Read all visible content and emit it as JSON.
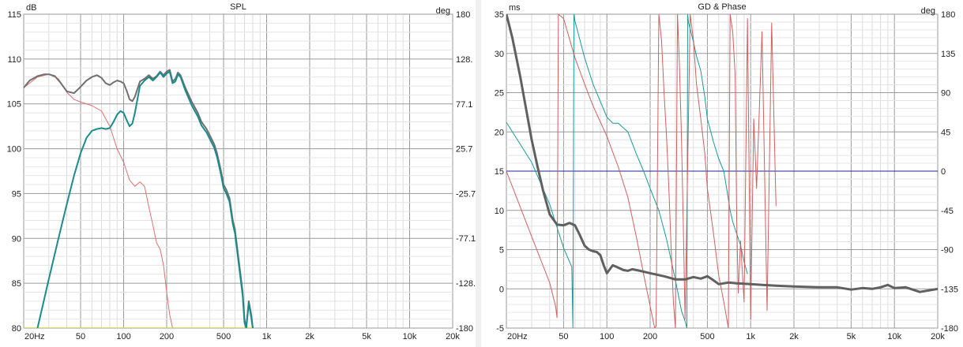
{
  "chart_data": [
    {
      "type": "line",
      "title": "SPL",
      "xlabel": "",
      "ylabel": "dB",
      "y2label": "deg",
      "xscale": "log",
      "xlim": [
        20,
        20000
      ],
      "ylim": [
        80,
        115
      ],
      "y2lim": [
        -180,
        180
      ],
      "x_ticks": [
        {
          "value": 20,
          "label": "20Hz"
        },
        {
          "value": 50,
          "label": "50"
        },
        {
          "value": 100,
          "label": "100"
        },
        {
          "value": 200,
          "label": "200"
        },
        {
          "value": 500,
          "label": "500"
        },
        {
          "value": 1000,
          "label": "1k"
        },
        {
          "value": 2000,
          "label": "2k"
        },
        {
          "value": 5000,
          "label": "5k"
        },
        {
          "value": 10000,
          "label": "10k"
        },
        {
          "value": 20000,
          "label": "20k"
        }
      ],
      "y_ticks": [
        {
          "value": 115,
          "label": "115"
        },
        {
          "value": 110,
          "label": "110"
        },
        {
          "value": 105,
          "label": "105"
        },
        {
          "value": 100,
          "label": "100"
        },
        {
          "value": 95,
          "label": "95"
        },
        {
          "value": 90,
          "label": "90"
        },
        {
          "value": 85,
          "label": "85"
        },
        {
          "value": 80,
          "label": "80"
        }
      ],
      "y2_ticks": [
        {
          "value": 180,
          "label": "180"
        },
        {
          "value": 128.6,
          "label": "128."
        },
        {
          "value": 77.1,
          "label": "77.1"
        },
        {
          "value": 25.7,
          "label": "25.7"
        },
        {
          "value": -25.7,
          "label": "-25.7"
        },
        {
          "value": -77.1,
          "label": "-77.1"
        },
        {
          "value": -128.6,
          "label": "-128."
        },
        {
          "value": -180,
          "label": "-180"
        }
      ],
      "grid": true,
      "series": [
        {
          "color": "#e07070",
          "width": 1,
          "axis": "y",
          "x": [
            20,
            25,
            30,
            35,
            40,
            45,
            50,
            60,
            70,
            80,
            90,
            100,
            110,
            120,
            130,
            140,
            150,
            160,
            170,
            180,
            190,
            200,
            210,
            220,
            230
          ],
          "y": [
            106.8,
            108.0,
            108.3,
            107.8,
            106.3,
            105.5,
            105.2,
            104.8,
            104.2,
            102.5,
            100.0,
            98.5,
            96.5,
            95.8,
            96.3,
            95.8,
            93.5,
            91.5,
            89.5,
            88.8,
            87.0,
            84.0,
            81.5,
            80.0,
            80.0
          ]
        },
        {
          "color": "#c8dc28",
          "width": 1.5,
          "axis": "y",
          "x": [
            20,
            25,
            30,
            35,
            40,
            45,
            50,
            60,
            70,
            80,
            90,
            100,
            110,
            120,
            130,
            140,
            150,
            160,
            170,
            180,
            190,
            200,
            210,
            220,
            230,
            240,
            250,
            270,
            300,
            330,
            350,
            380,
            400,
            430,
            450,
            480,
            500,
            520,
            550,
            580,
            600,
            650,
            680,
            700,
            720,
            750,
            780,
            800
          ],
          "y": [
            80.0,
            80.0,
            80.0,
            80.0,
            80.0,
            80.0,
            80.0,
            80.0,
            80.0,
            80.0,
            80.0,
            80.0,
            80.0,
            80.0,
            80.0,
            80.0,
            80.0,
            80.0,
            80.0,
            80.0,
            80.0,
            80.0,
            80.0,
            80.0,
            80.0,
            80.0,
            80.0,
            80.0,
            80.0,
            80.0,
            80.0,
            80.0,
            80.0,
            80.0,
            80.0,
            80.0,
            80.0,
            80.0,
            80.0,
            80.0,
            80.0,
            80.0,
            80.0,
            80.0,
            80.0,
            80.0,
            80.0,
            80.0
          ]
        },
        {
          "color": "#707070",
          "width": 2,
          "axis": "y",
          "x": [
            20,
            22,
            25,
            28,
            30,
            33,
            36,
            40,
            45,
            50,
            55,
            60,
            65,
            70,
            75,
            80,
            85,
            90,
            95,
            100,
            105,
            110,
            115,
            120,
            130,
            140,
            150,
            160,
            170,
            180,
            190,
            200,
            210,
            220,
            230,
            240,
            250,
            270,
            300,
            330,
            350,
            380,
            400,
            430,
            450,
            480,
            500,
            520,
            550,
            580,
            600,
            650,
            680,
            700,
            720,
            750,
            780,
            800
          ],
          "y": [
            106.8,
            107.6,
            108.1,
            108.3,
            108.3,
            108.1,
            107.4,
            106.4,
            106.2,
            106.9,
            107.6,
            108.0,
            108.2,
            107.9,
            107.3,
            107.1,
            107.4,
            107.6,
            107.5,
            107.3,
            106.5,
            105.5,
            105.3,
            105.8,
            107.5,
            107.8,
            108.2,
            107.8,
            108.1,
            108.6,
            108.2,
            108.6,
            108.8,
            107.5,
            107.8,
            108.5,
            108.2,
            106.8,
            105.2,
            104.0,
            103.0,
            102.2,
            101.5,
            100.5,
            99.5,
            97.5,
            96.0,
            95.5,
            94.5,
            92.0,
            91.0,
            86.5,
            84.0,
            81.0,
            80.0,
            83.0,
            81.5,
            80.0
          ]
        },
        {
          "color": "#1a8c8c",
          "width": 2,
          "axis": "y",
          "x": [
            25,
            30,
            35,
            40,
            45,
            50,
            55,
            60,
            65,
            70,
            75,
            80,
            85,
            90,
            95,
            100,
            105,
            110,
            115,
            120,
            130,
            140,
            150,
            160,
            170,
            180,
            190,
            200,
            210,
            220,
            230,
            240,
            250,
            270,
            300,
            330,
            350,
            380,
            400,
            430,
            450,
            480,
            500,
            520,
            550,
            580,
            600,
            650,
            680,
            700,
            720,
            750,
            780,
            800
          ],
          "y": [
            80.0,
            85.5,
            90.0,
            93.8,
            97.0,
            99.5,
            101.2,
            102.0,
            102.2,
            102.3,
            102.2,
            102.3,
            103.0,
            103.8,
            104.2,
            104.0,
            103.2,
            102.5,
            102.8,
            104.0,
            107.0,
            107.6,
            108.0,
            107.6,
            108.0,
            108.5,
            108.0,
            108.4,
            108.6,
            107.3,
            107.5,
            108.3,
            108.0,
            106.5,
            104.8,
            103.6,
            102.6,
            101.8,
            101.1,
            100.1,
            99.1,
            97.1,
            95.6,
            95.1,
            94.1,
            91.6,
            90.6,
            86.1,
            83.6,
            80.6,
            80.0,
            82.8,
            81.2,
            80.0
          ]
        }
      ]
    },
    {
      "type": "line",
      "title": "GD & Phase",
      "xlabel": "",
      "ylabel": "ms",
      "y2label": "deg",
      "xscale": "log",
      "xlim": [
        20,
        20000
      ],
      "ylim": [
        -5,
        35
      ],
      "y2lim": [
        -180,
        180
      ],
      "x_ticks": [
        {
          "value": 20,
          "label": "20Hz"
        },
        {
          "value": 50,
          "label": "50"
        },
        {
          "value": 100,
          "label": "100"
        },
        {
          "value": 200,
          "label": "200"
        },
        {
          "value": 500,
          "label": "500"
        },
        {
          "value": 1000,
          "label": "1k"
        },
        {
          "value": 2000,
          "label": "2k"
        },
        {
          "value": 5000,
          "label": "5k"
        },
        {
          "value": 10000,
          "label": "10k"
        },
        {
          "value": 20000,
          "label": "20k"
        }
      ],
      "y_ticks": [
        {
          "value": 35,
          "label": "35"
        },
        {
          "value": 30,
          "label": "30"
        },
        {
          "value": 25,
          "label": "25"
        },
        {
          "value": 20,
          "label": "20"
        },
        {
          "value": 15,
          "label": "15"
        },
        {
          "value": 10,
          "label": "10"
        },
        {
          "value": 5,
          "label": "5"
        },
        {
          "value": 0,
          "label": "0"
        },
        {
          "value": -5,
          "label": "-5"
        }
      ],
      "y2_ticks": [
        {
          "value": 180,
          "label": "180"
        },
        {
          "value": 135,
          "label": "135"
        },
        {
          "value": 90,
          "label": "90"
        },
        {
          "value": 45,
          "label": "45"
        },
        {
          "value": 0,
          "label": "0"
        },
        {
          "value": -45,
          "label": "-45"
        },
        {
          "value": -90,
          "label": "-90"
        },
        {
          "value": -135,
          "label": "-135"
        },
        {
          "value": -180,
          "label": "-180"
        }
      ],
      "grid": true,
      "series": [
        {
          "color": "#2020a0",
          "width": 1,
          "axis": "y2",
          "x": [
            20,
            20000
          ],
          "y": [
            0,
            0
          ]
        },
        {
          "color": "#1a9a9a",
          "width": 1,
          "axis": "y2",
          "x": [
            20,
            30,
            40,
            50,
            57,
            58,
            59,
            60,
            70,
            80,
            100,
            110,
            120,
            140,
            160,
            180,
            200,
            230,
            260,
            300,
            330,
            350,
            360,
            365,
            370,
            380,
            400,
            420,
            450,
            480,
            500,
            550,
            600,
            650,
            700,
            720,
            750,
            800,
            850,
            900,
            950
          ],
          "y": [
            56,
            10,
            -38,
            -88,
            -110,
            -180,
            180,
            172,
            130,
            100,
            62,
            55,
            55,
            45,
            20,
            0,
            -20,
            -45,
            -78,
            -125,
            -160,
            -172,
            -180,
            180,
            170,
            163,
            148,
            132,
            115,
            85,
            60,
            34,
            14,
            0,
            -32,
            -45,
            -58,
            -72,
            -85,
            -104,
            -118
          ]
        },
        {
          "color": "#d06060",
          "width": 1,
          "axis": "y2",
          "x": [
            20,
            30,
            40,
            44,
            45,
            46,
            50,
            60,
            70,
            80,
            100,
            120,
            140,
            160,
            180,
            200,
            215,
            220,
            230,
            240,
            250,
            260,
            270,
            280,
            290,
            300,
            310,
            320,
            330,
            340,
            350,
            380,
            400,
            420,
            450,
            480,
            500,
            550,
            600,
            650,
            700,
            720,
            750,
            780,
            800,
            820,
            850,
            900,
            950,
            1000,
            1050,
            1100,
            1200,
            1300,
            1400,
            1500
          ],
          "y": [
            0,
            -75,
            -128,
            -155,
            -168,
            180,
            175,
            130,
            100,
            75,
            40,
            5,
            -30,
            -75,
            -118,
            -155,
            -180,
            -178,
            180,
            150,
            90,
            40,
            -20,
            -90,
            -150,
            -180,
            180,
            120,
            40,
            -60,
            -170,
            180,
            150,
            100,
            60,
            20,
            -20,
            -70,
            -120,
            -150,
            -180,
            180,
            160,
            110,
            -60,
            -140,
            -80,
            -150,
            175,
            -170,
            60,
            -20,
            160,
            -160,
            170,
            -40
          ]
        },
        {
          "color": "#606060",
          "width": 3,
          "axis": "y",
          "x": [
            20,
            22,
            25,
            28,
            30,
            33,
            36,
            40,
            45,
            50,
            55,
            60,
            65,
            70,
            75,
            80,
            85,
            90,
            95,
            100,
            110,
            120,
            130,
            140,
            150,
            170,
            200,
            250,
            300,
            350,
            400,
            450,
            500,
            550,
            600,
            700,
            800,
            1000,
            1200,
            1500,
            2000,
            3000,
            4000,
            5000,
            6000,
            7000,
            8000,
            9000,
            10000,
            12000,
            15000,
            20000
          ],
          "y": [
            35,
            32,
            27,
            22,
            19,
            15.5,
            12.5,
            9.5,
            8.2,
            8.1,
            8.4,
            8.1,
            6.8,
            5.5,
            5.0,
            4.8,
            4.7,
            4.3,
            3.0,
            2.0,
            3.0,
            2.7,
            2.4,
            2.3,
            2.5,
            2.3,
            2.0,
            1.6,
            1.2,
            1.2,
            1.5,
            1.3,
            1.6,
            1.1,
            0.6,
            0.8,
            0.7,
            0.6,
            0.5,
            0.4,
            0.3,
            0.2,
            0.2,
            -0.1,
            0.1,
            0.0,
            0.2,
            0.5,
            0.1,
            0.2,
            -0.4,
            0.0
          ]
        }
      ]
    }
  ]
}
